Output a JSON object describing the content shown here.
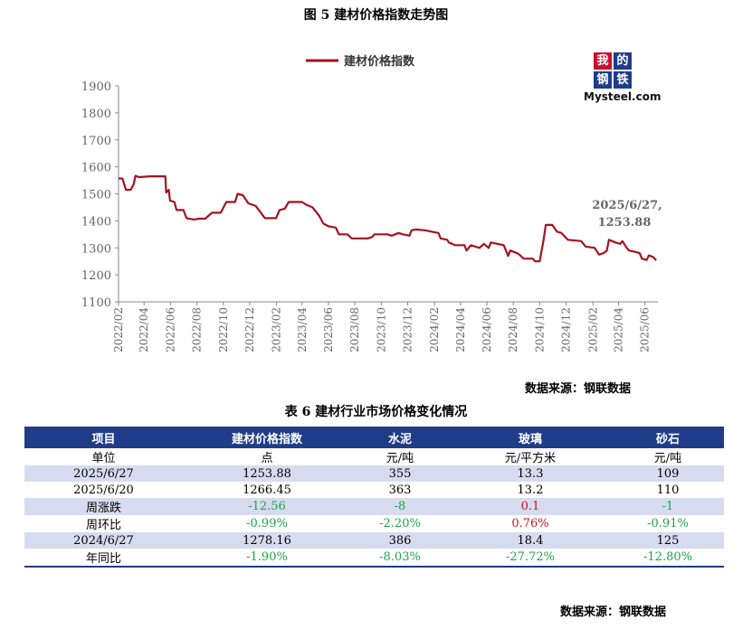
{
  "figure": {
    "title": "图 5  建材价格指数走势图",
    "source": "数据来源：钢联数据",
    "logo": {
      "cn_chars": [
        "我",
        "的",
        "钢",
        "铁"
      ],
      "en_text": "Mysteel.com"
    }
  },
  "chart_data": {
    "type": "line",
    "title": "图 5  建材价格指数走势图",
    "xlabel": "",
    "ylabel": "",
    "ylim": [
      1100,
      1900
    ],
    "yticks": [
      1100,
      1200,
      1300,
      1400,
      1500,
      1600,
      1700,
      1800,
      1900
    ],
    "xrange": [
      "2022/02",
      "2025/07"
    ],
    "xticks": [
      "2022/02",
      "2022/04",
      "2022/06",
      "2022/08",
      "2022/10",
      "2022/12",
      "2023/02",
      "2023/04",
      "2023/06",
      "2023/08",
      "2023/10",
      "2023/12",
      "2024/02",
      "2024/04",
      "2024/06",
      "2024/08",
      "2024/10",
      "2024/12",
      "2025/02",
      "2025/04",
      "2025/06"
    ],
    "grid": false,
    "legend": "top-center",
    "color": "#a5121f",
    "annotation": {
      "text_line1": "2025/6/27,",
      "text_line2": "1253.88",
      "x": "2025/06/27",
      "y": 1253.88
    },
    "series": [
      {
        "name": "建材价格指数",
        "points": [
          [
            "2022/02/01",
            1557
          ],
          [
            "2022/02/10",
            1557
          ],
          [
            "2022/02/18",
            1515
          ],
          [
            "2022/03/01",
            1515
          ],
          [
            "2022/03/08",
            1535
          ],
          [
            "2022/03/12",
            1567
          ],
          [
            "2022/03/20",
            1562
          ],
          [
            "2022/04/15",
            1565
          ],
          [
            "2022/05/20",
            1565
          ],
          [
            "2022/05/22",
            1505
          ],
          [
            "2022/05/28",
            1515
          ],
          [
            "2022/05/31",
            1475
          ],
          [
            "2022/06/10",
            1470
          ],
          [
            "2022/06/15",
            1440
          ],
          [
            "2022/07/01",
            1440
          ],
          [
            "2022/07/08",
            1410
          ],
          [
            "2022/07/25",
            1405
          ],
          [
            "2022/08/05",
            1408
          ],
          [
            "2022/08/20",
            1408
          ],
          [
            "2022/09/05",
            1430
          ],
          [
            "2022/09/25",
            1430
          ],
          [
            "2022/10/08",
            1470
          ],
          [
            "2022/10/28",
            1470
          ],
          [
            "2022/11/03",
            1500
          ],
          [
            "2022/11/15",
            1495
          ],
          [
            "2022/11/28",
            1465
          ],
          [
            "2022/12/15",
            1455
          ],
          [
            "2022/12/22",
            1440
          ],
          [
            "2023/01/05",
            1410
          ],
          [
            "2023/01/31",
            1410
          ],
          [
            "2023/02/08",
            1440
          ],
          [
            "2023/02/20",
            1445
          ],
          [
            "2023/03/01",
            1470
          ],
          [
            "2023/04/01",
            1470
          ],
          [
            "2023/04/10",
            1460
          ],
          [
            "2023/04/25",
            1450
          ],
          [
            "2023/05/10",
            1420
          ],
          [
            "2023/05/20",
            1390
          ],
          [
            "2023/06/01",
            1380
          ],
          [
            "2023/06/18",
            1375
          ],
          [
            "2023/06/25",
            1350
          ],
          [
            "2023/07/15",
            1350
          ],
          [
            "2023/07/25",
            1335
          ],
          [
            "2023/08/30",
            1335
          ],
          [
            "2023/09/10",
            1340
          ],
          [
            "2023/09/15",
            1350
          ],
          [
            "2023/10/15",
            1350
          ],
          [
            "2023/10/25",
            1345
          ],
          [
            "2023/11/10",
            1355
          ],
          [
            "2023/11/20",
            1350
          ],
          [
            "2023/12/05",
            1345
          ],
          [
            "2023/12/10",
            1365
          ],
          [
            "2023/12/20",
            1368
          ],
          [
            "2024/01/10",
            1365
          ],
          [
            "2024/01/25",
            1360
          ],
          [
            "2024/02/10",
            1355
          ],
          [
            "2024/02/15",
            1335
          ],
          [
            "2024/03/01",
            1330
          ],
          [
            "2024/03/05",
            1320
          ],
          [
            "2024/03/20",
            1310
          ],
          [
            "2024/04/10",
            1310
          ],
          [
            "2024/04/15",
            1290
          ],
          [
            "2024/04/25",
            1310
          ],
          [
            "2024/05/15",
            1300
          ],
          [
            "2024/05/25",
            1315
          ],
          [
            "2024/06/05",
            1300
          ],
          [
            "2024/06/10",
            1320
          ],
          [
            "2024/06/25",
            1315
          ],
          [
            "2024/07/10",
            1310
          ],
          [
            "2024/07/20",
            1270
          ],
          [
            "2024/07/25",
            1290
          ],
          [
            "2024/08/10",
            1280
          ],
          [
            "2024/08/15",
            1275
          ],
          [
            "2024/08/25",
            1260
          ],
          [
            "2024/09/15",
            1260
          ],
          [
            "2024/09/20",
            1250
          ],
          [
            "2024/10/01",
            1250
          ],
          [
            "2024/10/10",
            1330
          ],
          [
            "2024/10/15",
            1385
          ],
          [
            "2024/10/30",
            1385
          ],
          [
            "2024/11/10",
            1360
          ],
          [
            "2024/11/20",
            1355
          ],
          [
            "2024/12/05",
            1330
          ],
          [
            "2025/01/05",
            1325
          ],
          [
            "2025/01/15",
            1305
          ],
          [
            "2025/02/05",
            1300
          ],
          [
            "2025/02/15",
            1275
          ],
          [
            "2025/02/25",
            1280
          ],
          [
            "2025/03/05",
            1290
          ],
          [
            "2025/03/10",
            1330
          ],
          [
            "2025/03/25",
            1320
          ],
          [
            "2025/04/05",
            1315
          ],
          [
            "2025/04/10",
            1325
          ],
          [
            "2025/04/20",
            1300
          ],
          [
            "2025/04/25",
            1290
          ],
          [
            "2025/05/10",
            1285
          ],
          [
            "2025/05/20",
            1280
          ],
          [
            "2025/05/25",
            1260
          ],
          [
            "2025/06/05",
            1255
          ],
          [
            "2025/06/10",
            1272
          ],
          [
            "2025/06/20",
            1266.45
          ],
          [
            "2025/06/27",
            1253.88
          ]
        ]
      }
    ]
  },
  "table": {
    "title": "表 6 建材行业市场价格变化情况",
    "source": "数据来源：钢联数据",
    "headers": [
      "项目",
      "建材价格指数",
      "水泥",
      "玻璃",
      "砂石"
    ],
    "rows": [
      {
        "cells": [
          "单位",
          "点",
          "元/吨",
          "元/平方米",
          "元/吨"
        ],
        "signs": [
          "",
          "",
          "",
          "",
          ""
        ],
        "shade": false
      },
      {
        "cells": [
          "2025/6/27",
          "1253.88",
          "355",
          "13.3",
          "109"
        ],
        "signs": [
          "",
          "",
          "",
          "",
          ""
        ],
        "shade": true
      },
      {
        "cells": [
          "2025/6/20",
          "1266.45",
          "363",
          "13.2",
          "110"
        ],
        "signs": [
          "",
          "",
          "",
          "",
          ""
        ],
        "shade": false
      },
      {
        "cells": [
          "周涨跌",
          "-12.56",
          "-8",
          "0.1",
          "-1"
        ],
        "signs": [
          "",
          "neg",
          "neg",
          "pos",
          "neg"
        ],
        "shade": true
      },
      {
        "cells": [
          "周环比",
          "-0.99%",
          "-2.20%",
          "0.76%",
          "-0.91%"
        ],
        "signs": [
          "",
          "neg",
          "neg",
          "pos",
          "neg"
        ],
        "shade": false
      },
      {
        "cells": [
          "2024/6/27",
          "1278.16",
          "386",
          "18.4",
          "125"
        ],
        "signs": [
          "",
          "",
          "",
          "",
          ""
        ],
        "shade": true
      },
      {
        "cells": [
          "年同比",
          "-1.90%",
          "-8.03%",
          "-27.72%",
          "-12.80%"
        ],
        "signs": [
          "",
          "neg",
          "neg",
          "neg",
          "neg"
        ],
        "shade": false
      }
    ]
  }
}
